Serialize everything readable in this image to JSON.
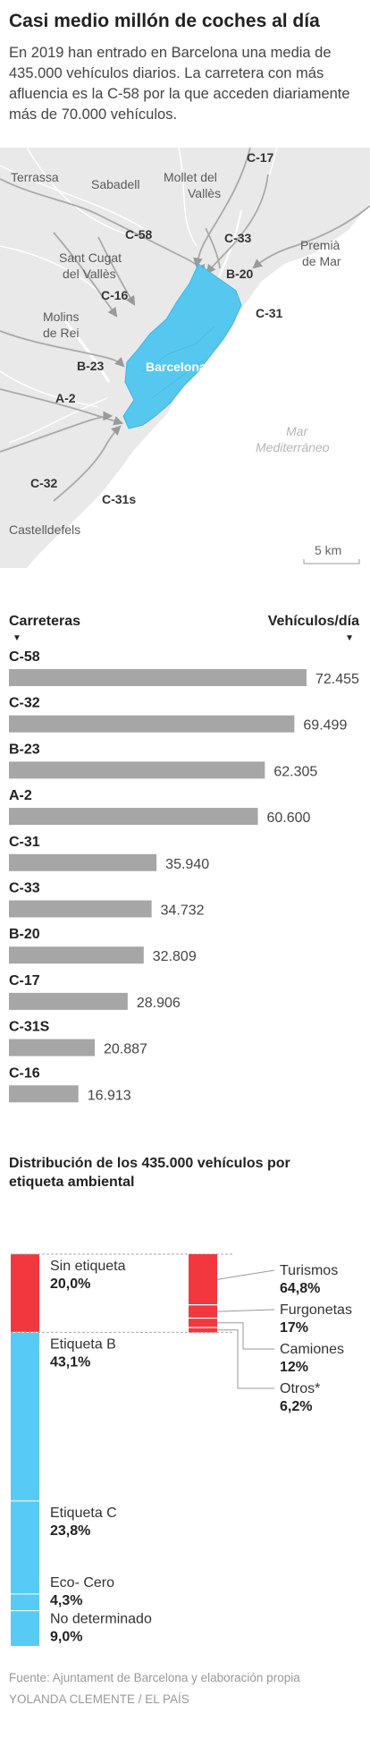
{
  "header": {
    "title": "Casi medio millón de coches al día",
    "subtitle": "En 2019 han entrado en Barcelona una  media de 435.000 vehículos diarios. La carretera con más afluencia es la C-58 por la que acceden diariamente más de 70.000 vehículos."
  },
  "map": {
    "places": [
      "Terrassa",
      "Sabadell",
      "Mollet del",
      "Vallès",
      "Sant Cugat",
      "del Vallès",
      "Molins",
      "de Rei",
      "Castelldefels",
      "Premià",
      "de Mar"
    ],
    "roads": [
      "C-17",
      "C-58",
      "C-33",
      "B-20",
      "C-31",
      "C-16",
      "B-23",
      "A-2",
      "C-32",
      "C-31s"
    ],
    "city": "Barcelona",
    "sea": [
      "Mar",
      "Mediterráneo"
    ],
    "scale": "5 km",
    "colors": {
      "land": "#e9e9e9",
      "city": "#56c8ef",
      "roads": "#aaaaaa",
      "sea": "#ffffff"
    }
  },
  "roads_chart": {
    "header_left": "Carreteras",
    "header_right": "Vehículos/día",
    "triangle": "▼"
  },
  "chart_data": [
    {
      "type": "bar",
      "orientation": "horizontal",
      "categories": [
        "C-58",
        "C-32",
        "B-23",
        "A-2",
        "C-31",
        "C-33",
        "B-20",
        "C-17",
        "C-31S",
        "C-16"
      ],
      "values": [
        72455,
        69499,
        62305,
        60600,
        35940,
        34732,
        32809,
        28906,
        20887,
        16913
      ],
      "value_labels": [
        "72.455",
        "69.499",
        "62.305",
        "60.600",
        "35.940",
        "34.732",
        "32.809",
        "28.906",
        "20.887",
        "16.913"
      ],
      "xlim": [
        0,
        72455
      ],
      "color": "#a6a6a6"
    },
    {
      "type": "bar",
      "orientation": "stacked-vertical",
      "title": "Distribución de los 435.000 vehículos por etiqueta ambiental",
      "categories": [
        "Sin etiqueta",
        "Etiqueta B",
        "Etiqueta C",
        "Eco- Cero",
        "No determinado"
      ],
      "values": [
        20.0,
        43.1,
        23.8,
        4.3,
        9.0
      ],
      "value_labels": [
        "20,0%",
        "43,1%",
        "23,8%",
        "4,3%",
        "9,0%"
      ],
      "colors": [
        "#f2383e",
        "#57cbf5",
        "#57cbf5",
        "#57cbf5",
        "#57cbf5"
      ],
      "breakdown": {
        "of": "Sin etiqueta",
        "categories": [
          "Turismos",
          "Furgonetas",
          "Camiones",
          "Otros*"
        ],
        "values": [
          64.8,
          17,
          12,
          6.2
        ],
        "value_labels": [
          "64,8%",
          "17%",
          "12%",
          "6,2%"
        ],
        "color": "#f2383e"
      }
    }
  ],
  "footer": {
    "source": "Fuente: Ajuntament de Barcelona y elaboración propia",
    "credit": "YOLANDA CLEMENTE / EL PAÍS"
  }
}
